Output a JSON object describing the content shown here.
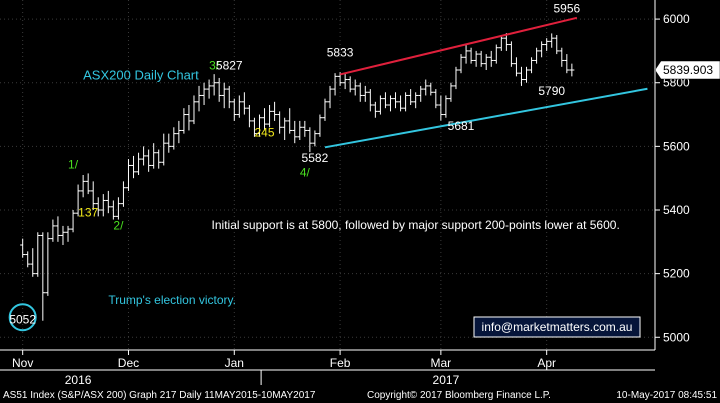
{
  "chart_data": {
    "type": "ohlc",
    "title": "ASX200 Daily Chart",
    "footer": {
      "left": "AS51 Index (S&P/ASX 200) Graph 217  Daily 11MAY2015-10MAY2017",
      "center": "Copyright© 2017 Bloomberg Finance L.P.",
      "right": "10-May-2017 08:45:51"
    },
    "y_axis": {
      "ticks": [
        5000,
        5200,
        5400,
        5600,
        5800,
        6000
      ],
      "range": [
        4960,
        6060
      ]
    },
    "x_axis": {
      "months": [
        {
          "label": "Nov",
          "x": 0
        },
        {
          "label": "Dec",
          "x": 21
        },
        {
          "label": "Jan",
          "x": 42
        },
        {
          "label": "Feb",
          "x": 63
        },
        {
          "label": "Mar",
          "x": 83
        },
        {
          "label": "Apr",
          "x": 104
        }
      ],
      "years": [
        {
          "label": "2016",
          "x": 11
        },
        {
          "label": "2017",
          "x": 84
        }
      ],
      "range": [
        -4.5,
        125.5
      ]
    },
    "last_price": "5839.903",
    "watermark": "info@marketmatters.com.au",
    "colors": {
      "bars": "#ffffff",
      "resistance": "#e0203c",
      "support": "#33c6e0",
      "wave_labels": "#49e01f",
      "retrace_labels": "#f2e91a",
      "label_text": "#ffffff",
      "note_text": "#33c6e0",
      "grid": "#3a3a3a"
    },
    "trendlines": [
      {
        "name": "resistance",
        "x": [
          63,
          110
        ],
        "y": [
          5826,
          6004
        ]
      },
      {
        "name": "support",
        "x": [
          60,
          124
        ],
        "y": [
          5597,
          5781
        ]
      }
    ],
    "annotations": [
      {
        "name": "price-5052",
        "text": "5052",
        "x": 0,
        "y": 5043,
        "style": "label"
      },
      {
        "name": "wave-1",
        "text": "1/",
        "x": 10,
        "y": 5530,
        "style": "wave"
      },
      {
        "name": "price-137",
        "text": "137",
        "x": 13,
        "y": 5380,
        "style": "retrace"
      },
      {
        "name": "wave-2",
        "text": "2/",
        "x": 19,
        "y": 5338,
        "style": "wave"
      },
      {
        "name": "wave-3",
        "text": "3/",
        "x": 38,
        "y": 5842,
        "style": "wave"
      },
      {
        "name": "price-5827",
        "text": "5827",
        "x": 41,
        "y": 5842,
        "style": "label"
      },
      {
        "name": "price-245",
        "text": "245",
        "x": 48,
        "y": 5631,
        "style": "retrace"
      },
      {
        "name": "wave-4",
        "text": "4/",
        "x": 56,
        "y": 5505,
        "style": "wave"
      },
      {
        "name": "price-5582",
        "text": "5582",
        "x": 58,
        "y": 5551,
        "style": "label"
      },
      {
        "name": "price-5833",
        "text": "5833",
        "x": 63,
        "y": 5883,
        "style": "label"
      },
      {
        "name": "price-5681",
        "text": "5681",
        "x": 87,
        "y": 5652,
        "style": "label"
      },
      {
        "name": "price-5956",
        "text": "5956",
        "x": 108,
        "y": 6021,
        "style": "label"
      },
      {
        "name": "price-5790",
        "text": "5790",
        "x": 105,
        "y": 5762,
        "style": "label"
      }
    ],
    "notes": [
      {
        "name": "chart-title",
        "text": "ASX200 Daily Chart",
        "x": 12,
        "y": 5810,
        "size": 13
      },
      {
        "name": "support-note",
        "text": "Initial support is at 5800, followed by major support 200-points lower at 5600.",
        "x": 78,
        "y": 5340,
        "size": 12,
        "color": "label",
        "anchor": "middle"
      },
      {
        "name": "election-note",
        "text": "Trump's election victory.",
        "x": 17,
        "y": 5105,
        "size": 12
      }
    ],
    "event_marker": {
      "name": "election-circle",
      "x": 0,
      "y": 5063
    },
    "series": [
      {
        "name": "ASX200",
        "ohlc": [
          [
            5290,
            5310,
            5250,
            5260
          ],
          [
            5260,
            5270,
            5220,
            5230
          ],
          [
            5230,
            5280,
            5190,
            5200
          ],
          [
            5200,
            5330,
            5190,
            5320
          ],
          [
            5320,
            5330,
            5052,
            5140
          ],
          [
            5140,
            5330,
            5130,
            5310
          ],
          [
            5310,
            5370,
            5300,
            5350
          ],
          [
            5350,
            5380,
            5300,
            5320
          ],
          [
            5320,
            5350,
            5290,
            5330
          ],
          [
            5330,
            5350,
            5300,
            5340
          ],
          [
            5340,
            5400,
            5330,
            5390
          ],
          [
            5390,
            5480,
            5380,
            5460
          ],
          [
            5460,
            5510,
            5440,
            5490
          ],
          [
            5490,
            5515,
            5450,
            5460
          ],
          [
            5460,
            5490,
            5400,
            5420
          ],
          [
            5420,
            5440,
            5380,
            5400
          ],
          [
            5400,
            5450,
            5380,
            5430
          ],
          [
            5430,
            5460,
            5390,
            5410
          ],
          [
            5410,
            5430,
            5370,
            5380
          ],
          [
            5380,
            5440,
            5370,
            5420
          ],
          [
            5420,
            5490,
            5410,
            5470
          ],
          [
            5470,
            5560,
            5460,
            5540
          ],
          [
            5540,
            5570,
            5500,
            5520
          ],
          [
            5520,
            5580,
            5510,
            5560
          ],
          [
            5560,
            5600,
            5540,
            5570
          ],
          [
            5570,
            5590,
            5520,
            5540
          ],
          [
            5540,
            5610,
            5530,
            5580
          ],
          [
            5580,
            5590,
            5530,
            5550
          ],
          [
            5550,
            5640,
            5540,
            5610
          ],
          [
            5610,
            5640,
            5580,
            5600
          ],
          [
            5600,
            5660,
            5590,
            5640
          ],
          [
            5640,
            5680,
            5610,
            5650
          ],
          [
            5650,
            5720,
            5640,
            5700
          ],
          [
            5700,
            5730,
            5650,
            5680
          ],
          [
            5680,
            5760,
            5670,
            5740
          ],
          [
            5740,
            5790,
            5710,
            5760
          ],
          [
            5760,
            5800,
            5730,
            5780
          ],
          [
            5780,
            5810,
            5750,
            5790
          ],
          [
            5790,
            5827,
            5760,
            5800
          ],
          [
            5800,
            5815,
            5740,
            5760
          ],
          [
            5760,
            5800,
            5720,
            5780
          ],
          [
            5780,
            5790,
            5720,
            5740
          ],
          [
            5740,
            5750,
            5680,
            5700
          ],
          [
            5700,
            5760,
            5690,
            5740
          ],
          [
            5740,
            5770,
            5700,
            5720
          ],
          [
            5720,
            5730,
            5660,
            5680
          ],
          [
            5680,
            5690,
            5630,
            5640
          ],
          [
            5640,
            5700,
            5630,
            5690
          ],
          [
            5690,
            5720,
            5650,
            5670
          ],
          [
            5670,
            5730,
            5660,
            5710
          ],
          [
            5710,
            5740,
            5680,
            5700
          ],
          [
            5700,
            5710,
            5640,
            5660
          ],
          [
            5660,
            5690,
            5620,
            5680
          ],
          [
            5680,
            5720,
            5640,
            5650
          ],
          [
            5650,
            5680,
            5610,
            5630
          ],
          [
            5630,
            5680,
            5620,
            5660
          ],
          [
            5660,
            5680,
            5630,
            5650
          ],
          [
            5650,
            5660,
            5582,
            5610
          ],
          [
            5610,
            5650,
            5600,
            5640
          ],
          [
            5640,
            5700,
            5630,
            5690
          ],
          [
            5690,
            5750,
            5680,
            5740
          ],
          [
            5740,
            5790,
            5720,
            5780
          ],
          [
            5780,
            5830,
            5760,
            5820
          ],
          [
            5820,
            5833,
            5790,
            5800
          ],
          [
            5800,
            5830,
            5780,
            5810
          ],
          [
            5810,
            5820,
            5770,
            5780
          ],
          [
            5780,
            5810,
            5760,
            5790
          ],
          [
            5790,
            5800,
            5740,
            5760
          ],
          [
            5760,
            5790,
            5740,
            5770
          ],
          [
            5770,
            5780,
            5710,
            5730
          ],
          [
            5730,
            5740,
            5690,
            5710
          ],
          [
            5710,
            5760,
            5700,
            5750
          ],
          [
            5750,
            5770,
            5720,
            5730
          ],
          [
            5730,
            5760,
            5710,
            5750
          ],
          [
            5750,
            5770,
            5720,
            5740
          ],
          [
            5740,
            5760,
            5710,
            5720
          ],
          [
            5720,
            5770,
            5710,
            5760
          ],
          [
            5760,
            5780,
            5730,
            5740
          ],
          [
            5740,
            5770,
            5720,
            5760
          ],
          [
            5760,
            5790,
            5740,
            5780
          ],
          [
            5780,
            5810,
            5760,
            5790
          ],
          [
            5790,
            5800,
            5760,
            5770
          ],
          [
            5770,
            5780,
            5720,
            5730
          ],
          [
            5730,
            5760,
            5681,
            5700
          ],
          [
            5700,
            5760,
            5690,
            5750
          ],
          [
            5750,
            5800,
            5740,
            5790
          ],
          [
            5790,
            5850,
            5780,
            5840
          ],
          [
            5840,
            5890,
            5830,
            5880
          ],
          [
            5880,
            5920,
            5860,
            5900
          ],
          [
            5900,
            5910,
            5860,
            5870
          ],
          [
            5870,
            5900,
            5850,
            5890
          ],
          [
            5890,
            5900,
            5850,
            5860
          ],
          [
            5860,
            5890,
            5840,
            5880
          ],
          [
            5880,
            5900,
            5850,
            5870
          ],
          [
            5870,
            5920,
            5860,
            5910
          ],
          [
            5910,
            5950,
            5900,
            5940
          ],
          [
            5940,
            5956,
            5900,
            5920
          ],
          [
            5920,
            5930,
            5850,
            5860
          ],
          [
            5860,
            5880,
            5820,
            5830
          ],
          [
            5830,
            5850,
            5790,
            5810
          ],
          [
            5810,
            5850,
            5800,
            5840
          ],
          [
            5840,
            5880,
            5830,
            5870
          ],
          [
            5870,
            5910,
            5860,
            5900
          ],
          [
            5900,
            5930,
            5880,
            5920
          ],
          [
            5920,
            5940,
            5900,
            5930
          ],
          [
            5930,
            5955,
            5910,
            5940
          ],
          [
            5940,
            5950,
            5890,
            5900
          ],
          [
            5900,
            5910,
            5850,
            5870
          ],
          [
            5870,
            5890,
            5830,
            5840
          ],
          [
            5840,
            5860,
            5820,
            5840
          ]
        ]
      }
    ]
  }
}
